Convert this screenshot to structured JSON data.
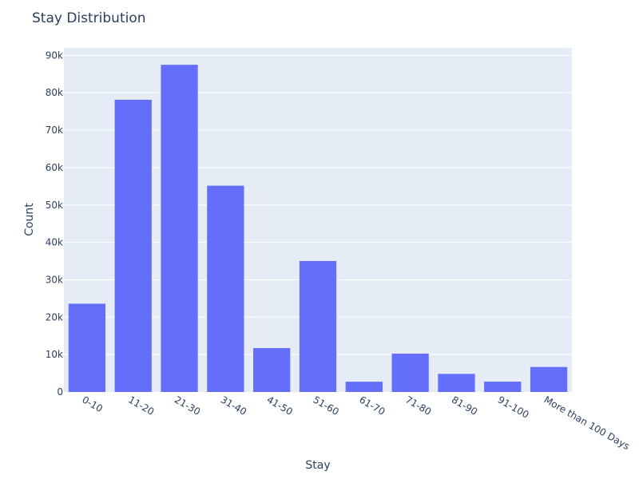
{
  "chart_data": {
    "type": "bar",
    "title": "Stay Distribution",
    "xlabel": "Stay",
    "ylabel": "Count",
    "categories": [
      "0-10",
      "11-20",
      "21-30",
      "31-40",
      "41-50",
      "51-60",
      "61-70",
      "71-80",
      "81-90",
      "91-100",
      "More than 100 Days"
    ],
    "values": [
      23604,
      78139,
      87491,
      55159,
      11743,
      35018,
      2744,
      10254,
      4838,
      2765,
      6683
    ],
    "ylim": [
      0,
      92000
    ],
    "yticks": [
      0,
      10000,
      20000,
      30000,
      40000,
      50000,
      60000,
      70000,
      80000,
      90000
    ],
    "ytick_labels": [
      "0",
      "10k",
      "20k",
      "30k",
      "40k",
      "50k",
      "60k",
      "70k",
      "80k",
      "90k"
    ],
    "grid": true,
    "colors": {
      "bar": "#636efa",
      "plot_background": "#e5ecf6",
      "grid": "#ffffff",
      "text": "#2a3f5f"
    }
  }
}
